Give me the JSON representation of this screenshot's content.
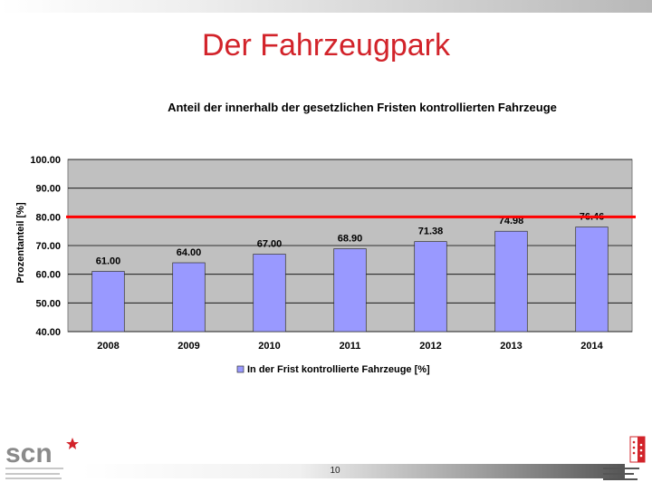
{
  "slide": {
    "title": "Der Fahrzeugpark",
    "page_number": "10"
  },
  "colors": {
    "title_red": "#d2232a",
    "bar_fill": "#9999ff",
    "bar_stroke": "#333333",
    "plot_bg": "#c0c0c0",
    "threshold_line": "#ff0000"
  },
  "logos": {
    "left_icon": "scn-logo-icon",
    "right_icon": "canton-du-valais-logo-icon"
  },
  "chart_data": {
    "type": "bar",
    "title": "Anteil der innerhalb der gesetzlichen Fristen kontrollierten Fahrzeuge",
    "xlabel": "",
    "ylabel": "Prozentanteil [%]",
    "categories": [
      "2008",
      "2009",
      "2010",
      "2011",
      "2012",
      "2013",
      "2014"
    ],
    "series": [
      {
        "name": "In der Frist kontrollierte Fahrzeuge [%]",
        "values": [
          61.0,
          64.0,
          67.0,
          68.9,
          71.38,
          74.98,
          76.46
        ],
        "labels": [
          "61.00",
          "64.00",
          "67.00",
          "68.90",
          "71.38",
          "74.98",
          "76.46"
        ]
      }
    ],
    "ylim": [
      40,
      100
    ],
    "yticks": [
      "40.00",
      "50.00",
      "60.00",
      "70.00",
      "80.00",
      "90.00",
      "100.00"
    ],
    "grid": true,
    "threshold": 80,
    "legend_position": "bottom"
  }
}
